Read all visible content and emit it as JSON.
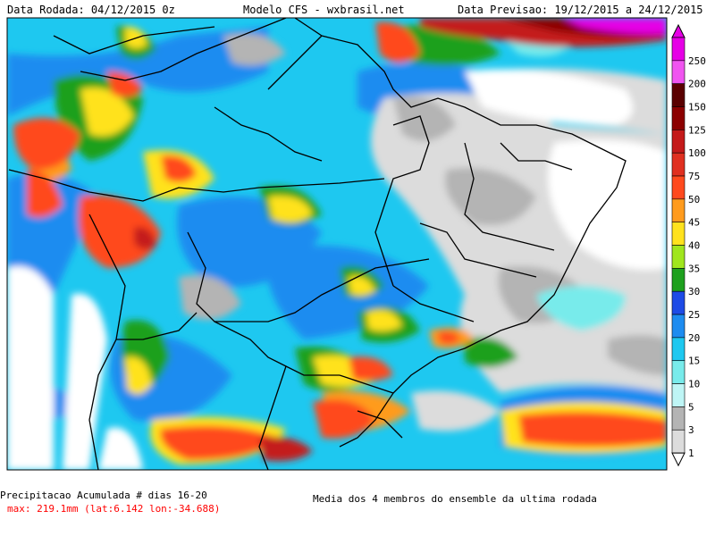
{
  "header": {
    "run_date": "Data Rodada: 04/12/2015 0z",
    "model": "Modelo CFS - wxbrasil.net",
    "forecast_date": "Data Previsao: 19/12/2015 a 24/12/2015"
  },
  "footer": {
    "title": "Precipitacao Acumulada # dias 16-20",
    "max_info": "max: 219.1mm (lat:6.142 lon:-34.688)",
    "note": "Media dos 4 membros do ensemble da ultima rodada"
  },
  "colorbar": {
    "levels": [
      {
        "label": "250",
        "color": "#e600e6"
      },
      {
        "label": "200",
        "color": "#f055f0"
      },
      {
        "label": "150",
        "color": "#5a0000"
      },
      {
        "label": "125",
        "color": "#8c0000"
      },
      {
        "label": "100",
        "color": "#c41a1a"
      },
      {
        "label": "75",
        "color": "#e03020"
      },
      {
        "label": "50",
        "color": "#ff4a1e"
      },
      {
        "label": "45",
        "color": "#ff9b1e"
      },
      {
        "label": "40",
        "color": "#ffe21e"
      },
      {
        "label": "35",
        "color": "#a0e61e"
      },
      {
        "label": "30",
        "color": "#1ea01e"
      },
      {
        "label": "25",
        "color": "#1e4be6"
      },
      {
        "label": "20",
        "color": "#1e8cf0"
      },
      {
        "label": "15",
        "color": "#1ec8f0"
      },
      {
        "label": "10",
        "color": "#78ebeb"
      },
      {
        "label": "5",
        "color": "#bef5f5"
      },
      {
        "label": "3",
        "color": "#b4b4b4"
      },
      {
        "label": "1",
        "color": "#dcdcdc"
      }
    ],
    "below_color": "#ffffff"
  },
  "colors": {
    "background_rain": "#1ec8f0",
    "land_dry": "#ffffff",
    "max_text": "#ff0000"
  }
}
